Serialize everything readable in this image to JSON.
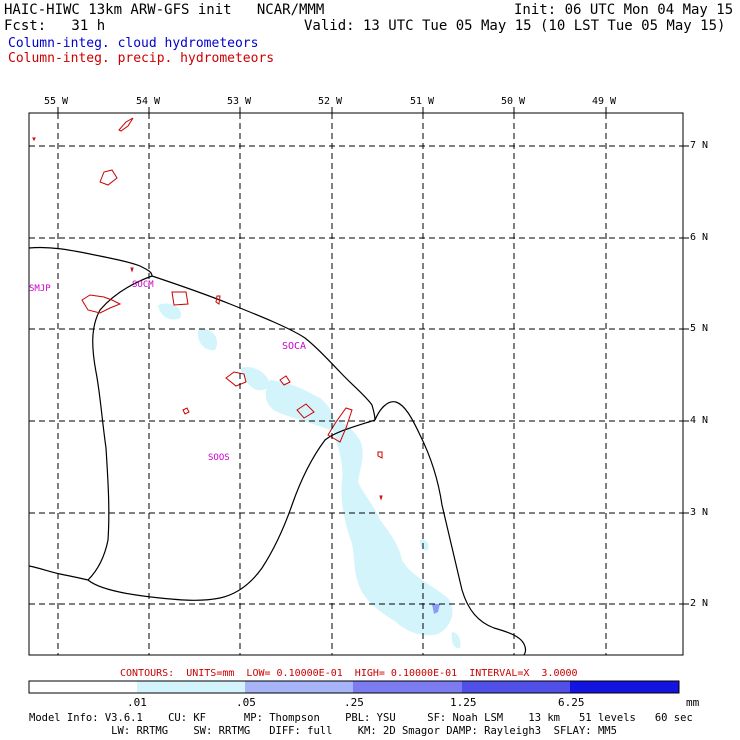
{
  "header": {
    "model": "HAIC-HIWC 13km ARW-GFS init   NCAR/MMM",
    "fcst": "Fcst:   31 h",
    "init": "Init: 06 UTC Mon 04 May 15",
    "valid": "Valid: 13 UTC Tue 05 May 15 (10 LST Tue 05 May 15)",
    "legend_cloud": "Column-integ. cloud hydrometeors",
    "legend_precip": "Column-integ. precip. hydrometeors"
  },
  "map": {
    "lon_labels": [
      "55 W",
      "54 W",
      "53 W",
      "52 W",
      "51 W",
      "50 W",
      "49 W"
    ],
    "lat_labels": [
      "7 N",
      "6 N",
      "5 N",
      "4 N",
      "3 N",
      "2 N"
    ],
    "stations": [
      {
        "id": "SMJP"
      },
      {
        "id": "SOCM"
      },
      {
        "id": "SOCA"
      },
      {
        "id": "SOOS"
      }
    ]
  },
  "contours_line": "CONTOURS:  UNITS=mm  LOW= 0.10000E-01  HIGH= 0.10000E-01  INTERVAL=X  3.0000",
  "colorbar": {
    "ticks": [
      ".01",
      ".05",
      ".25",
      "1.25",
      "6.25"
    ],
    "unit": "mm",
    "colors": [
      "#ffffff",
      "#d4f4fc",
      "#a8b4f8",
      "#7c7cf0",
      "#5050e8",
      "#1414e0"
    ]
  },
  "footer": {
    "line1": "Model Info: V3.6.1    CU: KF      MP: Thompson    PBL: YSU     SF: Noah LSM    13 km   51 levels   60 sec",
    "line2": "             LW: RRTMG    SW: RRTMG   DIFF: full    KM: 2D Smagor DAMP: Rayleigh3  SFLAY: MM5"
  },
  "colors": {
    "cloud_fill": "#d4f4fc",
    "precip_contour": "#cc0000",
    "station_label": "#cc00cc",
    "title_blue": "#0000cc"
  }
}
